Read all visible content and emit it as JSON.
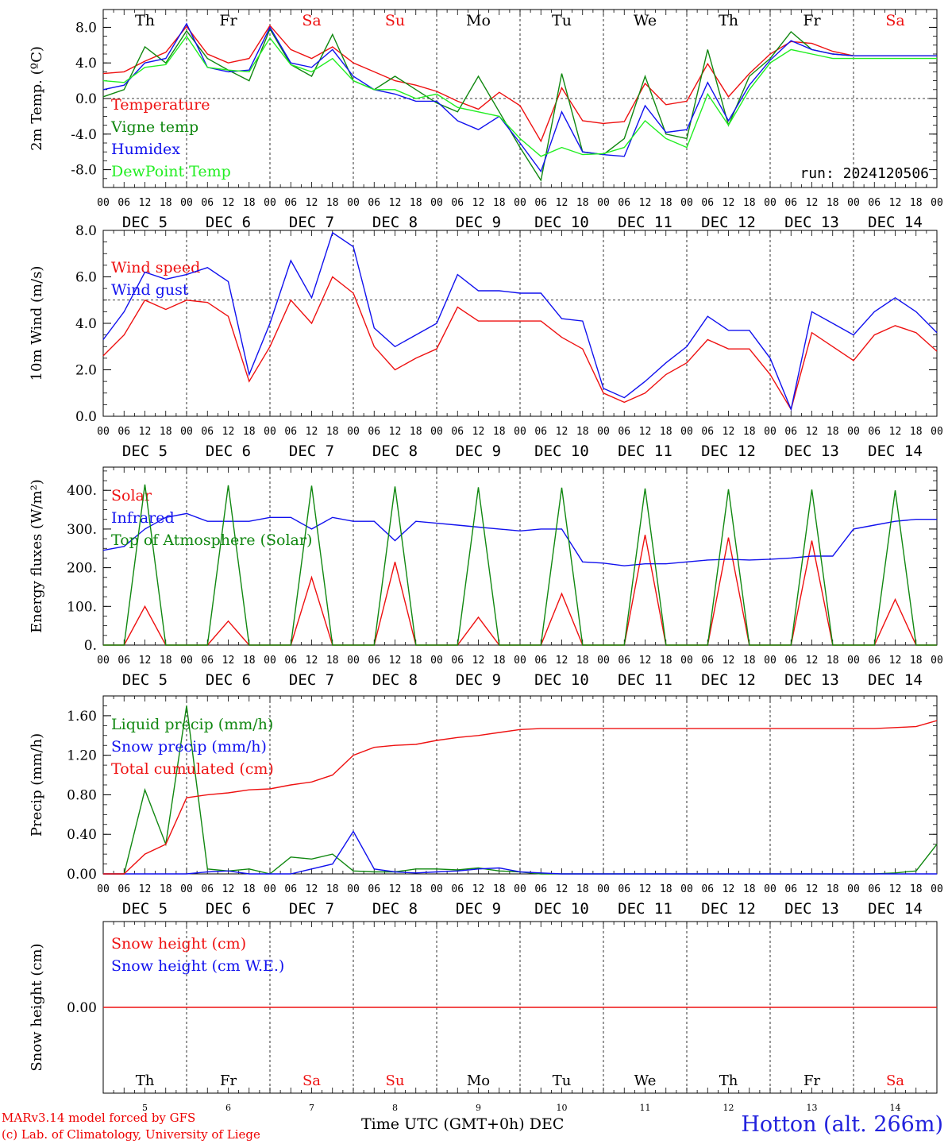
{
  "days": [
    {
      "abbr": "Th",
      "date": "5",
      "weekend": false
    },
    {
      "abbr": "Fr",
      "date": "6",
      "weekend": false
    },
    {
      "abbr": "Sa",
      "date": "7",
      "weekend": true
    },
    {
      "abbr": "Su",
      "date": "8",
      "weekend": true
    },
    {
      "abbr": "Mo",
      "date": "9",
      "weekend": false
    },
    {
      "abbr": "Tu",
      "date": "10",
      "weekend": false
    },
    {
      "abbr": "We",
      "date": "11",
      "weekend": false
    },
    {
      "abbr": "Th",
      "date": "12",
      "weekend": false
    },
    {
      "abbr": "Fr",
      "date": "13",
      "weekend": false
    },
    {
      "abbr": "Sa",
      "date": "14",
      "weekend": true
    }
  ],
  "month": "DEC",
  "hour_ticks": [
    "00",
    "06",
    "12",
    "18"
  ],
  "end_tick": "00",
  "colors": {
    "red": "#ee1111",
    "green": "#118811",
    "blue": "#1111ee",
    "lightgreen": "#22ee22",
    "weekend": "#ee1111",
    "grid": "#000000"
  },
  "run_label": "run: 2024120506",
  "footer": {
    "credit_line1": "MARv3.14 model forced by GFS",
    "credit_line2": "(c) Lab. of Climatology, University of Liege",
    "xaxis_title": "Time UTC (GMT+0h) DEC",
    "station": "Hotton (alt. 266m)"
  },
  "chart_data": [
    {
      "type": "line",
      "ylabel": "2m Temp. (ºC)",
      "ylim": [
        -10,
        10
      ],
      "yticks": [
        "-8.0",
        "-4.0",
        "0.0",
        "4.0",
        "8.0"
      ],
      "ytick_values": [
        -8,
        -4,
        0,
        4,
        8
      ],
      "ref_line": 0,
      "x_hours": [
        0,
        6,
        12,
        18,
        24,
        30,
        36,
        42,
        48,
        54,
        60,
        66,
        72,
        78,
        84,
        90,
        96,
        102,
        108,
        114,
        120,
        126,
        132,
        138,
        144,
        150,
        156,
        162,
        168,
        174,
        180,
        186,
        192,
        198,
        204,
        210,
        216,
        222,
        228,
        234,
        240
      ],
      "series": [
        {
          "name": "Temperature",
          "color": "red",
          "values": [
            2.8,
            3.0,
            4.2,
            5.2,
            8.1,
            5.0,
            4.0,
            4.5,
            8.2,
            5.5,
            4.5,
            5.8,
            4.0,
            3.0,
            2.0,
            1.5,
            0.8,
            -0.3,
            -1.2,
            0.7,
            -0.8,
            -4.8,
            1.2,
            -2.5,
            -2.8,
            -2.6,
            1.7,
            -0.7,
            -0.3,
            3.9,
            0.2,
            2.8,
            5.0,
            6.4,
            6.2,
            5.3,
            4.8,
            4.8,
            4.8,
            4.8,
            4.8
          ]
        },
        {
          "name": "Vigne temp",
          "color": "green",
          "values": [
            0.2,
            1.0,
            5.8,
            4.0,
            7.6,
            4.5,
            3.2,
            2.0,
            7.8,
            3.8,
            2.5,
            7.2,
            2.0,
            1.0,
            2.5,
            1.0,
            -0.5,
            -1.5,
            2.5,
            -1.5,
            -5.5,
            -9.2,
            2.8,
            -6.0,
            -6.3,
            -4.5,
            2.5,
            -4.0,
            -4.5,
            5.5,
            -3.0,
            2.5,
            4.5,
            7.5,
            5.5,
            5.0,
            4.8,
            4.8,
            4.8,
            4.8,
            4.8
          ]
        },
        {
          "name": "Humidex",
          "color": "blue",
          "values": [
            1.0,
            1.5,
            4.0,
            4.5,
            8.4,
            3.5,
            3.0,
            3.2,
            8.0,
            4.0,
            3.5,
            5.5,
            2.5,
            1.0,
            0.5,
            -0.3,
            -0.3,
            -2.5,
            -3.5,
            -2.0,
            -5.0,
            -8.2,
            -1.5,
            -6.0,
            -6.3,
            -6.5,
            -0.8,
            -3.8,
            -3.5,
            1.8,
            -2.5,
            1.5,
            4.3,
            6.5,
            5.5,
            5.0,
            4.8,
            4.8,
            4.8,
            4.8,
            4.8
          ]
        },
        {
          "name": "DewPoint Temp",
          "color": "lightgreen",
          "values": [
            2.0,
            1.8,
            3.5,
            3.8,
            7.0,
            3.5,
            3.2,
            3.0,
            6.8,
            3.8,
            3.0,
            4.5,
            2.0,
            1.0,
            1.0,
            0.0,
            0.5,
            -1.0,
            -1.5,
            -2.0,
            -4.5,
            -6.5,
            -5.5,
            -6.3,
            -6.2,
            -5.5,
            -2.5,
            -4.5,
            -5.5,
            0.5,
            -3.0,
            1.0,
            4.0,
            5.5,
            5.0,
            4.5,
            4.5,
            4.5,
            4.5,
            4.5,
            4.5
          ]
        }
      ]
    },
    {
      "type": "line",
      "ylabel": "10m Wind (m/s)",
      "ylim": [
        0,
        8
      ],
      "yticks": [
        "0.0",
        "2.0",
        "4.0",
        "6.0",
        "8.0"
      ],
      "ytick_values": [
        0,
        2,
        4,
        6,
        8
      ],
      "ref_line": 5,
      "x_hours": [
        0,
        6,
        12,
        18,
        24,
        30,
        36,
        42,
        48,
        54,
        60,
        66,
        72,
        78,
        84,
        90,
        96,
        102,
        108,
        114,
        120,
        126,
        132,
        138,
        144,
        150,
        156,
        162,
        168,
        174,
        180,
        186,
        192,
        198,
        204,
        210,
        216,
        222,
        228,
        234,
        240
      ],
      "series": [
        {
          "name": "Wind speed",
          "color": "red",
          "values": [
            2.6,
            3.5,
            5.0,
            4.6,
            5.0,
            4.9,
            4.3,
            1.5,
            3.0,
            5.0,
            4.0,
            6.0,
            5.3,
            3.0,
            2.0,
            2.5,
            2.9,
            4.7,
            4.1,
            4.1,
            4.1,
            4.1,
            3.4,
            2.9,
            1.0,
            0.6,
            1.0,
            1.8,
            2.3,
            3.3,
            2.9,
            2.9,
            1.8,
            0.3,
            3.6,
            3.0,
            2.4,
            3.5,
            3.9,
            3.6,
            2.8
          ]
        },
        {
          "name": "Wind gust",
          "color": "blue",
          "values": [
            3.3,
            4.5,
            6.2,
            5.9,
            6.1,
            6.4,
            5.8,
            1.8,
            4.0,
            6.7,
            5.1,
            7.9,
            7.3,
            3.8,
            3.0,
            3.5,
            4.0,
            6.1,
            5.4,
            5.4,
            5.3,
            5.3,
            4.2,
            4.1,
            1.2,
            0.8,
            1.5,
            2.3,
            3.0,
            4.3,
            3.7,
            3.7,
            2.5,
            0.3,
            4.5,
            4.0,
            3.5,
            4.5,
            5.1,
            4.5,
            3.6
          ]
        }
      ]
    },
    {
      "type": "line",
      "ylabel": "Energy fluxes (W/m²)",
      "ylim": [
        0,
        460
      ],
      "yticks": [
        "0.",
        "100.",
        "200.",
        "300.",
        "400."
      ],
      "ytick_values": [
        0,
        100,
        200,
        300,
        400
      ],
      "ref_line": null,
      "x_hours": [
        0,
        6,
        12,
        18,
        24,
        30,
        36,
        42,
        48,
        54,
        60,
        66,
        72,
        78,
        84,
        90,
        96,
        102,
        108,
        114,
        120,
        126,
        132,
        138,
        144,
        150,
        156,
        162,
        168,
        174,
        180,
        186,
        192,
        198,
        204,
        210,
        216,
        222,
        228,
        234,
        240
      ],
      "series": [
        {
          "name": "Solar",
          "color": "red",
          "values": [
            0,
            0,
            100,
            0,
            0,
            0,
            62,
            0,
            0,
            0,
            175,
            0,
            0,
            0,
            215,
            0,
            0,
            0,
            72,
            0,
            0,
            0,
            133,
            0,
            0,
            0,
            285,
            0,
            0,
            0,
            278,
            0,
            0,
            0,
            270,
            0,
            0,
            0,
            118,
            0,
            0
          ]
        },
        {
          "name": "Infrared",
          "color": "blue",
          "values": [
            245,
            255,
            300,
            330,
            340,
            320,
            320,
            320,
            330,
            330,
            300,
            330,
            320,
            320,
            270,
            320,
            315,
            310,
            305,
            300,
            295,
            300,
            300,
            215,
            212,
            205,
            210,
            210,
            215,
            220,
            222,
            220,
            222,
            225,
            230,
            230,
            300,
            310,
            320,
            325,
            325
          ]
        },
        {
          "name": "Top of Atmosphere (Solar)",
          "color": "green",
          "values": [
            0,
            0,
            415,
            0,
            0,
            0,
            413,
            0,
            0,
            0,
            412,
            0,
            0,
            0,
            410,
            0,
            0,
            0,
            408,
            0,
            0,
            0,
            407,
            0,
            0,
            0,
            405,
            0,
            0,
            0,
            403,
            0,
            0,
            0,
            402,
            0,
            0,
            0,
            400,
            0,
            0
          ]
        }
      ]
    },
    {
      "type": "line",
      "ylabel": "Precip (mm/h)",
      "ylim": [
        0,
        1.8
      ],
      "yticks": [
        "0.00",
        "0.40",
        "0.80",
        "1.20",
        "1.60"
      ],
      "ytick_values": [
        0,
        0.4,
        0.8,
        1.2,
        1.6
      ],
      "ref_line": null,
      "x_hours": [
        0,
        6,
        12,
        18,
        24,
        30,
        36,
        42,
        48,
        54,
        60,
        66,
        72,
        78,
        84,
        90,
        96,
        102,
        108,
        114,
        120,
        126,
        132,
        138,
        144,
        150,
        156,
        162,
        168,
        174,
        180,
        186,
        192,
        198,
        204,
        210,
        216,
        222,
        228,
        234,
        240
      ],
      "series": [
        {
          "name": "Liquid precip (mm/h)",
          "color": "green",
          "values": [
            0,
            0,
            0.85,
            0.3,
            1.7,
            0.05,
            0.03,
            0.05,
            0,
            0.17,
            0.15,
            0.2,
            0.03,
            0.02,
            0.02,
            0.05,
            0.05,
            0.04,
            0.06,
            0.03,
            0.02,
            0,
            0,
            0,
            0,
            0,
            0,
            0,
            0,
            0,
            0,
            0,
            0,
            0,
            0,
            0,
            0,
            0,
            0.01,
            0.03,
            0.3
          ]
        },
        {
          "name": "Snow precip (mm/h)",
          "color": "blue",
          "values": [
            0,
            0,
            0,
            0,
            0,
            0.02,
            0.03,
            0,
            0,
            0,
            0.05,
            0.1,
            0.43,
            0.05,
            0.02,
            0.01,
            0.02,
            0.03,
            0.05,
            0.06,
            0.02,
            0.01,
            0,
            0,
            0,
            0,
            0,
            0,
            0,
            0,
            0,
            0,
            0,
            0,
            0,
            0,
            0,
            0,
            0,
            0,
            0
          ]
        },
        {
          "name": "Total cumulated (cm)",
          "color": "red",
          "values": [
            0,
            0,
            0.2,
            0.3,
            0.77,
            0.8,
            0.82,
            0.85,
            0.86,
            0.9,
            0.93,
            1.0,
            1.2,
            1.28,
            1.3,
            1.31,
            1.35,
            1.38,
            1.4,
            1.43,
            1.46,
            1.47,
            1.47,
            1.47,
            1.47,
            1.47,
            1.47,
            1.47,
            1.47,
            1.47,
            1.47,
            1.47,
            1.47,
            1.47,
            1.47,
            1.47,
            1.47,
            1.47,
            1.48,
            1.49,
            1.55
          ]
        }
      ]
    },
    {
      "type": "line",
      "ylabel": "Snow height (cm)",
      "ylim": [
        -1,
        1
      ],
      "yticks": [
        "0.00"
      ],
      "ytick_values": [
        0
      ],
      "ref_line": null,
      "x_hours": [
        0,
        240
      ],
      "series": [
        {
          "name": "Snow height (cm)",
          "color": "red",
          "values": [
            0,
            0
          ]
        },
        {
          "name": "Snow height (cm W.E.)",
          "color": "blue",
          "values": []
        }
      ]
    }
  ]
}
